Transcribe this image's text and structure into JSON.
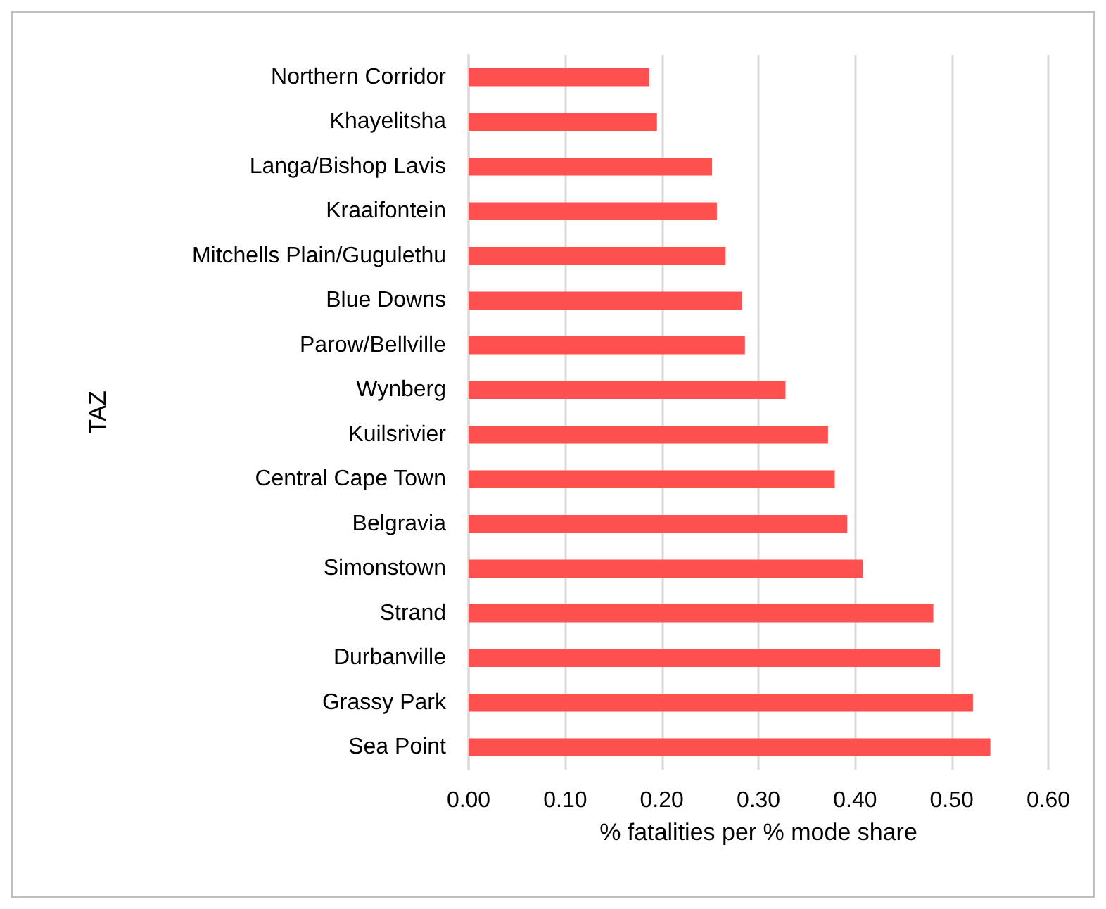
{
  "chart_data": {
    "type": "bar",
    "orientation": "horizontal",
    "xlabel": "% fatalities per % mode share",
    "ylabel": "TAZ",
    "categories": [
      "Northern Corridor",
      "Khayelitsha",
      "Langa/Bishop Lavis",
      "Kraaifontein",
      "Mitchells Plain/Gugulethu",
      "Blue Downs",
      "Parow/Bellville",
      "Wynberg",
      "Kuilsrivier",
      "Central Cape Town",
      "Belgravia",
      "Simonstown",
      "Strand",
      "Durbanville",
      "Grassy Park",
      "Sea Point"
    ],
    "values": [
      0.187,
      0.195,
      0.252,
      0.257,
      0.266,
      0.283,
      0.286,
      0.328,
      0.372,
      0.379,
      0.392,
      0.408,
      0.481,
      0.488,
      0.522,
      0.54
    ],
    "color": "#ff5050",
    "xlim": [
      0,
      0.6
    ],
    "xticks": [
      {
        "value": 0,
        "label": "0.00"
      },
      {
        "value": 0.1,
        "label": "0.10"
      },
      {
        "value": 0.2,
        "label": "0.20"
      },
      {
        "value": 0.3,
        "label": "0.30"
      },
      {
        "value": 0.4,
        "label": "0.40"
      },
      {
        "value": 0.5,
        "label": "0.50"
      },
      {
        "value": 0.6,
        "label": "0.60"
      }
    ],
    "grid": "x"
  }
}
